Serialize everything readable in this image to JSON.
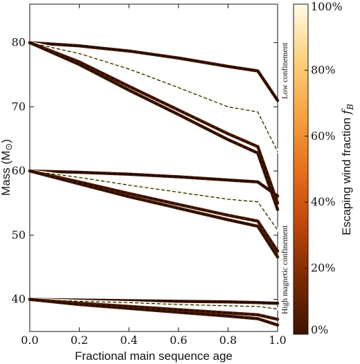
{
  "chart_data": {
    "type": "line",
    "xlabel": "Fractional main sequence age",
    "ylabel": "Mass (M",
    "ylabel_symbol": "⊙",
    "ylabel_close": ")",
    "xlim": [
      0.0,
      1.0
    ],
    "ylim": [
      35,
      86
    ],
    "x_ticks": [
      0.0,
      0.2,
      0.4,
      0.6,
      0.8,
      1.0
    ],
    "x_tick_labels": [
      "0.0",
      "0.2",
      "0.4",
      "0.6",
      "0.8",
      "1.0"
    ],
    "y_ticks": [
      40,
      50,
      60,
      70,
      80
    ],
    "y_tick_labels": [
      "40",
      "50",
      "60",
      "70",
      "80"
    ],
    "grid": false,
    "colorbar": {
      "label": "Escaping wind fraction ",
      "label_symbol": "f",
      "label_sub": "B",
      "tick_values": [
        0,
        20,
        40,
        60,
        80,
        100
      ],
      "tick_labels": [
        "0%",
        "20%",
        "40%",
        "60%",
        "80%",
        "100%"
      ],
      "colors": [
        "#3d1400",
        "#7a2a02",
        "#c0470a",
        "#e8701a",
        "#f5a340",
        "#fcd27d",
        "#fffbe6"
      ]
    },
    "annotations": {
      "top": "Low confinement",
      "bottom": "High magnetic confinement"
    },
    "series": [
      {
        "f": 0.0,
        "x": [
          0,
          0.2,
          0.4,
          0.6,
          0.8,
          0.92,
          1.0
        ],
        "y": [
          80.0,
          79.5,
          78.7,
          77.6,
          76.3,
          75.6,
          71.0
        ]
      },
      {
        "f": 1.0,
        "x": [
          0,
          0.2,
          0.4,
          0.6,
          0.8,
          0.92,
          1.0
        ],
        "y": [
          80.0,
          78.3,
          75.9,
          73.0,
          70.0,
          69.2,
          63.0
        ]
      },
      {
        "f": 0.05,
        "x": [
          0,
          0.2,
          0.4,
          0.6,
          0.8,
          0.92,
          1.0
        ],
        "y": [
          80.0,
          77.0,
          73.2,
          69.5,
          65.8,
          63.8,
          55.0
        ]
      },
      {
        "f": 0.02,
        "x": [
          0,
          0.2,
          0.4,
          0.6,
          0.8,
          0.92,
          1.0
        ],
        "y": [
          80.0,
          76.6,
          72.6,
          68.8,
          64.9,
          62.8,
          54.0
        ]
      },
      {
        "f": 0.0,
        "x": [
          0,
          0.2,
          0.4,
          0.6,
          0.8,
          0.92,
          1.0
        ],
        "y": [
          60.0,
          59.8,
          59.5,
          59.1,
          58.6,
          58.3,
          56.1
        ]
      },
      {
        "f": 1.0,
        "x": [
          0,
          0.2,
          0.4,
          0.6,
          0.8,
          0.92,
          1.0
        ],
        "y": [
          60.0,
          59.0,
          57.8,
          56.7,
          55.6,
          55.2,
          50.8
        ]
      },
      {
        "f": 0.05,
        "x": [
          0,
          0.2,
          0.4,
          0.6,
          0.8,
          0.92,
          1.0
        ],
        "y": [
          60.0,
          58.3,
          56.5,
          54.8,
          53.1,
          52.2,
          47.5
        ]
      },
      {
        "f": 0.02,
        "x": [
          0,
          0.2,
          0.4,
          0.6,
          0.8,
          0.92,
          1.0
        ],
        "y": [
          60.0,
          58.0,
          56.0,
          54.2,
          52.4,
          51.4,
          46.6
        ]
      },
      {
        "f": 0.0,
        "x": [
          0,
          0.2,
          0.4,
          0.6,
          0.8,
          0.92,
          1.0
        ],
        "y": [
          40.0,
          39.9,
          39.8,
          39.7,
          39.6,
          39.5,
          39.4
        ]
      },
      {
        "f": 1.0,
        "x": [
          0,
          0.2,
          0.4,
          0.6,
          0.8,
          0.92,
          1.0
        ],
        "y": [
          40.0,
          39.7,
          39.5,
          39.2,
          39.0,
          38.9,
          38.5
        ]
      },
      {
        "f": 0.05,
        "x": [
          0,
          0.2,
          0.4,
          0.6,
          0.8,
          0.92,
          1.0
        ],
        "y": [
          40.0,
          39.4,
          38.9,
          38.4,
          37.9,
          37.6,
          36.9
        ]
      },
      {
        "f": 0.02,
        "x": [
          0,
          0.2,
          0.4,
          0.6,
          0.8,
          0.92,
          1.0
        ],
        "y": [
          40.0,
          39.2,
          38.6,
          38.0,
          37.4,
          37.0,
          36.0
        ]
      }
    ]
  }
}
